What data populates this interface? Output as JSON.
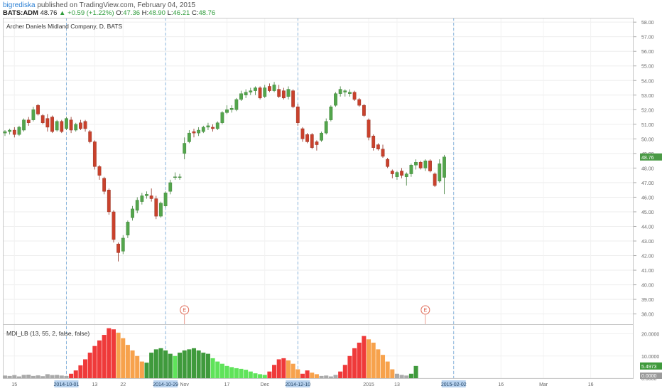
{
  "header": {
    "user": "bigrediska",
    "published": "published on TradingView.com, February 04, 2015",
    "symbol": "BATS:ADM",
    "last": "48.76",
    "change": "▲ +0.59 (+1.22%)",
    "o_label": "O:",
    "o": "47.36",
    "h_label": "H:",
    "h": "48.90",
    "l_label": "L:",
    "l": "46.21",
    "c_label": "C:",
    "c": "48.76"
  },
  "chart_data": [
    {
      "type": "candlestick",
      "title": "Archer Daniels Midland Company, D, BATS",
      "ylim": [
        37.3,
        58.3
      ],
      "yticks": [
        38,
        39,
        40,
        41,
        42,
        43,
        44,
        45,
        46,
        47,
        48,
        49,
        50,
        51,
        52,
        53,
        54,
        55,
        56,
        57,
        58
      ],
      "ytick_labels": [
        "38.00",
        "39.00",
        "40.00",
        "41.00",
        "42.00",
        "43.00",
        "44.00",
        "45.00",
        "46.00",
        "47.00",
        "48.00",
        "49.00",
        "50.00",
        "51.00",
        "52.00",
        "53.00",
        "54.00",
        "55.00",
        "56.00",
        "57.00",
        "58.00"
      ],
      "last_price_label": "48.76",
      "colors": {
        "up": "#53a54c",
        "down": "#c9412c",
        "last_price": "#4a9a45"
      },
      "earnings_markers": [
        {
          "index": 38,
          "label": "E"
        },
        {
          "index": 89,
          "label": "E"
        }
      ],
      "candles": [
        {
          "o": 50.4,
          "h": 50.6,
          "l": 50.2,
          "c": 50.5
        },
        {
          "o": 50.5,
          "h": 50.7,
          "l": 50.3,
          "c": 50.6
        },
        {
          "o": 50.6,
          "h": 50.8,
          "l": 50.1,
          "c": 50.3
        },
        {
          "o": 50.3,
          "h": 50.9,
          "l": 50.2,
          "c": 50.8
        },
        {
          "o": 50.6,
          "h": 51.4,
          "l": 50.5,
          "c": 51.3
        },
        {
          "o": 51.3,
          "h": 51.5,
          "l": 50.9,
          "c": 51.1
        },
        {
          "o": 51.3,
          "h": 52.2,
          "l": 51.2,
          "c": 52.0
        },
        {
          "o": 52.3,
          "h": 52.4,
          "l": 51.6,
          "c": 51.7
        },
        {
          "o": 51.6,
          "h": 51.7,
          "l": 51.0,
          "c": 51.1
        },
        {
          "o": 51.4,
          "h": 51.7,
          "l": 50.5,
          "c": 50.8
        },
        {
          "o": 51.5,
          "h": 51.6,
          "l": 50.4,
          "c": 50.5
        },
        {
          "o": 50.6,
          "h": 51.3,
          "l": 50.5,
          "c": 51.2
        },
        {
          "o": 51.2,
          "h": 51.3,
          "l": 50.4,
          "c": 50.5
        },
        {
          "o": 50.7,
          "h": 51.5,
          "l": 50.6,
          "c": 51.4
        },
        {
          "o": 51.3,
          "h": 51.5,
          "l": 50.4,
          "c": 50.6
        },
        {
          "o": 50.6,
          "h": 51.1,
          "l": 50.5,
          "c": 51.0
        },
        {
          "o": 51.1,
          "h": 51.3,
          "l": 50.6,
          "c": 50.7
        },
        {
          "o": 51.2,
          "h": 51.3,
          "l": 50.5,
          "c": 50.7
        },
        {
          "o": 50.5,
          "h": 50.6,
          "l": 49.7,
          "c": 49.8
        },
        {
          "o": 49.8,
          "h": 49.9,
          "l": 47.9,
          "c": 48.1
        },
        {
          "o": 48.1,
          "h": 48.2,
          "l": 47.2,
          "c": 47.5
        },
        {
          "o": 47.3,
          "h": 47.4,
          "l": 46.2,
          "c": 46.4
        },
        {
          "o": 46.5,
          "h": 46.6,
          "l": 44.8,
          "c": 45.0
        },
        {
          "o": 45.0,
          "h": 45.1,
          "l": 42.9,
          "c": 43.1
        },
        {
          "o": 42.8,
          "h": 42.9,
          "l": 41.6,
          "c": 42.2
        },
        {
          "o": 42.3,
          "h": 43.4,
          "l": 42.1,
          "c": 43.2
        },
        {
          "o": 43.4,
          "h": 44.4,
          "l": 43.2,
          "c": 44.3
        },
        {
          "o": 44.6,
          "h": 45.4,
          "l": 44.4,
          "c": 45.2
        },
        {
          "o": 45.1,
          "h": 46.0,
          "l": 44.9,
          "c": 45.8
        },
        {
          "o": 45.7,
          "h": 46.3,
          "l": 45.5,
          "c": 46.1
        },
        {
          "o": 46.1,
          "h": 46.4,
          "l": 45.9,
          "c": 46.2
        },
        {
          "o": 46.1,
          "h": 46.6,
          "l": 45.7,
          "c": 45.9
        },
        {
          "o": 45.9,
          "h": 46.1,
          "l": 44.5,
          "c": 44.7
        },
        {
          "o": 44.7,
          "h": 45.7,
          "l": 44.6,
          "c": 45.6
        },
        {
          "o": 45.4,
          "h": 46.4,
          "l": 45.3,
          "c": 46.3
        },
        {
          "o": 46.4,
          "h": 47.2,
          "l": 46.2,
          "c": 47.0
        },
        {
          "o": 47.4,
          "h": 47.7,
          "l": 47.2,
          "c": 47.4
        },
        {
          "o": 47.4,
          "h": 47.6,
          "l": 47.2,
          "c": 47.4
        },
        {
          "o": 49.0,
          "h": 50.1,
          "l": 48.6,
          "c": 49.7
        },
        {
          "o": 49.8,
          "h": 50.6,
          "l": 49.7,
          "c": 50.4
        },
        {
          "o": 50.5,
          "h": 50.7,
          "l": 50.1,
          "c": 50.4
        },
        {
          "o": 50.4,
          "h": 50.8,
          "l": 50.2,
          "c": 50.6
        },
        {
          "o": 50.5,
          "h": 50.9,
          "l": 50.4,
          "c": 50.8
        },
        {
          "o": 50.8,
          "h": 51.1,
          "l": 50.6,
          "c": 50.9
        },
        {
          "o": 50.8,
          "h": 51.0,
          "l": 50.5,
          "c": 50.7
        },
        {
          "o": 50.7,
          "h": 51.2,
          "l": 50.6,
          "c": 51.1
        },
        {
          "o": 51.1,
          "h": 51.9,
          "l": 51.0,
          "c": 51.8
        },
        {
          "o": 51.8,
          "h": 52.3,
          "l": 51.7,
          "c": 52.0
        },
        {
          "o": 52.0,
          "h": 52.3,
          "l": 51.8,
          "c": 52.1
        },
        {
          "o": 52.0,
          "h": 52.8,
          "l": 51.9,
          "c": 52.7
        },
        {
          "o": 52.7,
          "h": 53.3,
          "l": 52.6,
          "c": 53.1
        },
        {
          "o": 53.0,
          "h": 53.4,
          "l": 52.8,
          "c": 53.2
        },
        {
          "o": 53.2,
          "h": 53.5,
          "l": 53.0,
          "c": 53.3
        },
        {
          "o": 53.3,
          "h": 53.6,
          "l": 53.0,
          "c": 53.5
        },
        {
          "o": 53.5,
          "h": 53.6,
          "l": 52.7,
          "c": 52.8
        },
        {
          "o": 52.9,
          "h": 53.7,
          "l": 52.8,
          "c": 53.5
        },
        {
          "o": 53.6,
          "h": 53.8,
          "l": 53.2,
          "c": 53.3
        },
        {
          "o": 53.3,
          "h": 53.9,
          "l": 53.2,
          "c": 53.7
        },
        {
          "o": 53.4,
          "h": 53.7,
          "l": 52.8,
          "c": 52.9
        },
        {
          "o": 53.3,
          "h": 53.5,
          "l": 52.7,
          "c": 52.8
        },
        {
          "o": 52.9,
          "h": 53.6,
          "l": 52.7,
          "c": 53.4
        },
        {
          "o": 53.3,
          "h": 53.4,
          "l": 52.1,
          "c": 52.2
        },
        {
          "o": 52.2,
          "h": 52.4,
          "l": 50.9,
          "c": 51.1
        },
        {
          "o": 50.7,
          "h": 50.8,
          "l": 49.8,
          "c": 50.0
        },
        {
          "o": 50.3,
          "h": 50.4,
          "l": 49.7,
          "c": 49.8
        },
        {
          "o": 50.3,
          "h": 50.4,
          "l": 49.3,
          "c": 49.4
        },
        {
          "o": 49.8,
          "h": 49.9,
          "l": 49.2,
          "c": 49.6
        },
        {
          "o": 49.9,
          "h": 50.5,
          "l": 49.8,
          "c": 50.4
        },
        {
          "o": 50.4,
          "h": 51.4,
          "l": 50.3,
          "c": 51.2
        },
        {
          "o": 51.3,
          "h": 52.3,
          "l": 51.2,
          "c": 52.2
        },
        {
          "o": 52.3,
          "h": 53.2,
          "l": 52.2,
          "c": 53.1
        },
        {
          "o": 53.1,
          "h": 53.6,
          "l": 52.9,
          "c": 53.4
        },
        {
          "o": 53.2,
          "h": 53.4,
          "l": 52.9,
          "c": 53.3
        },
        {
          "o": 53.1,
          "h": 53.4,
          "l": 52.9,
          "c": 53.2
        },
        {
          "o": 53.2,
          "h": 53.3,
          "l": 52.6,
          "c": 52.7
        },
        {
          "o": 52.7,
          "h": 52.8,
          "l": 52.2,
          "c": 52.3
        },
        {
          "o": 52.3,
          "h": 52.4,
          "l": 51.5,
          "c": 51.6
        },
        {
          "o": 51.3,
          "h": 51.4,
          "l": 49.9,
          "c": 50.1
        },
        {
          "o": 50.2,
          "h": 50.3,
          "l": 49.2,
          "c": 49.4
        },
        {
          "o": 49.6,
          "h": 49.7,
          "l": 49.2,
          "c": 49.3
        },
        {
          "o": 49.3,
          "h": 49.6,
          "l": 48.7,
          "c": 48.8
        },
        {
          "o": 48.6,
          "h": 48.7,
          "l": 48.0,
          "c": 48.1
        },
        {
          "o": 47.8,
          "h": 47.9,
          "l": 47.3,
          "c": 47.6
        },
        {
          "o": 47.4,
          "h": 47.8,
          "l": 47.2,
          "c": 47.7
        },
        {
          "o": 47.8,
          "h": 48.0,
          "l": 47.3,
          "c": 47.5
        },
        {
          "o": 47.4,
          "h": 47.7,
          "l": 46.8,
          "c": 47.6
        },
        {
          "o": 47.6,
          "h": 48.3,
          "l": 47.4,
          "c": 48.2
        },
        {
          "o": 48.2,
          "h": 48.6,
          "l": 47.9,
          "c": 48.4
        },
        {
          "o": 48.4,
          "h": 48.5,
          "l": 47.9,
          "c": 48.0
        },
        {
          "o": 48.0,
          "h": 48.6,
          "l": 47.8,
          "c": 48.5
        },
        {
          "o": 48.5,
          "h": 48.6,
          "l": 47.7,
          "c": 47.8
        },
        {
          "o": 47.6,
          "h": 47.7,
          "l": 46.7,
          "c": 46.8
        },
        {
          "o": 47.1,
          "h": 48.6,
          "l": 47.0,
          "c": 48.3
        },
        {
          "o": 47.36,
          "h": 48.9,
          "l": 46.21,
          "c": 48.76
        }
      ],
      "x_tick_labels": [
        {
          "index": 2,
          "label": "15"
        },
        {
          "index": 13,
          "label": "2014-10-01",
          "highlight": true
        },
        {
          "index": 19,
          "label": "13"
        },
        {
          "index": 25,
          "label": "22"
        },
        {
          "index": 34,
          "label": "2014-10-29",
          "highlight": true
        },
        {
          "index": 38,
          "label": "Nov"
        },
        {
          "index": 47,
          "label": "17"
        },
        {
          "index": 55,
          "label": "Dec"
        },
        {
          "index": 62,
          "label": "2014-12-10",
          "highlight": true
        },
        {
          "index": 77,
          "label": "2015"
        },
        {
          "index": 83,
          "label": "13"
        },
        {
          "index": 95,
          "label": "2015-02-02",
          "highlight": true
        },
        {
          "index": 105,
          "label": "16"
        },
        {
          "index": 114,
          "label": "Mar"
        },
        {
          "index": 124,
          "label": "16"
        }
      ],
      "vertical_markers": [
        13,
        34,
        62,
        95
      ]
    },
    {
      "type": "bar",
      "title": "MDI_LB (13, 55, 2, false, false)",
      "ylim": [
        0,
        24
      ],
      "yticks": [
        0,
        10,
        20
      ],
      "ytick_labels": [
        "0.0000",
        "10.0000",
        "20.0000"
      ],
      "current_labels": [
        "5.4973",
        "0.0000"
      ],
      "colors": {
        "gray": "#a9a9a9",
        "red": "#ef3a3a",
        "orange": "#f7a24c",
        "dark_green": "#3f9a3c",
        "light_green": "#5fe35a"
      },
      "bars": [
        {
          "v": 1.2,
          "c": "gray"
        },
        {
          "v": 1.0,
          "c": "gray"
        },
        {
          "v": 1.4,
          "c": "gray"
        },
        {
          "v": 0.8,
          "c": "gray"
        },
        {
          "v": 1.5,
          "c": "gray"
        },
        {
          "v": 1.6,
          "c": "gray"
        },
        {
          "v": 1.0,
          "c": "gray"
        },
        {
          "v": 1.3,
          "c": "gray"
        },
        {
          "v": 0.9,
          "c": "gray"
        },
        {
          "v": 1.8,
          "c": "gray"
        },
        {
          "v": 1.4,
          "c": "gray"
        },
        {
          "v": 1.5,
          "c": "gray"
        },
        {
          "v": 1.2,
          "c": "gray"
        },
        {
          "v": 1.0,
          "c": "gray"
        },
        {
          "v": 2.0,
          "c": "red"
        },
        {
          "v": 3.5,
          "c": "red"
        },
        {
          "v": 5.8,
          "c": "red"
        },
        {
          "v": 8.5,
          "c": "red"
        },
        {
          "v": 11.5,
          "c": "red"
        },
        {
          "v": 14.5,
          "c": "red"
        },
        {
          "v": 17.0,
          "c": "red"
        },
        {
          "v": 19.5,
          "c": "red"
        },
        {
          "v": 22.5,
          "c": "red"
        },
        {
          "v": 22.0,
          "c": "red"
        },
        {
          "v": 20.5,
          "c": "orange"
        },
        {
          "v": 18.0,
          "c": "orange"
        },
        {
          "v": 15.0,
          "c": "orange"
        },
        {
          "v": 12.5,
          "c": "orange"
        },
        {
          "v": 10.0,
          "c": "orange"
        },
        {
          "v": 7.5,
          "c": "orange"
        },
        {
          "v": 7.0,
          "c": "dark_green"
        },
        {
          "v": 11.5,
          "c": "dark_green"
        },
        {
          "v": 13.0,
          "c": "dark_green"
        },
        {
          "v": 13.5,
          "c": "dark_green"
        },
        {
          "v": 12.5,
          "c": "dark_green"
        },
        {
          "v": 11.0,
          "c": "dark_green"
        },
        {
          "v": 10.0,
          "c": "light_green"
        },
        {
          "v": 11.5,
          "c": "dark_green"
        },
        {
          "v": 12.5,
          "c": "dark_green"
        },
        {
          "v": 13.0,
          "c": "dark_green"
        },
        {
          "v": 13.5,
          "c": "dark_green"
        },
        {
          "v": 12.5,
          "c": "dark_green"
        },
        {
          "v": 11.5,
          "c": "dark_green"
        },
        {
          "v": 11.0,
          "c": "dark_green"
        },
        {
          "v": 9.0,
          "c": "light_green"
        },
        {
          "v": 7.5,
          "c": "light_green"
        },
        {
          "v": 6.5,
          "c": "light_green"
        },
        {
          "v": 5.5,
          "c": "light_green"
        },
        {
          "v": 5.0,
          "c": "light_green"
        },
        {
          "v": 4.5,
          "c": "light_green"
        },
        {
          "v": 4.2,
          "c": "light_green"
        },
        {
          "v": 3.8,
          "c": "light_green"
        },
        {
          "v": 3.0,
          "c": "light_green"
        },
        {
          "v": 2.2,
          "c": "light_green"
        },
        {
          "v": 1.8,
          "c": "light_green"
        },
        {
          "v": 1.5,
          "c": "light_green"
        },
        {
          "v": 3.0,
          "c": "red"
        },
        {
          "v": 6.0,
          "c": "red"
        },
        {
          "v": 8.5,
          "c": "red"
        },
        {
          "v": 9.0,
          "c": "red"
        },
        {
          "v": 8.0,
          "c": "orange"
        },
        {
          "v": 6.5,
          "c": "orange"
        },
        {
          "v": 4.0,
          "c": "orange"
        },
        {
          "v": 2.0,
          "c": "red"
        },
        {
          "v": 3.5,
          "c": "red"
        },
        {
          "v": 2.5,
          "c": "orange"
        },
        {
          "v": 1.8,
          "c": "orange"
        },
        {
          "v": 1.0,
          "c": "gray"
        },
        {
          "v": 1.2,
          "c": "gray"
        },
        {
          "v": 0.8,
          "c": "gray"
        },
        {
          "v": 1.5,
          "c": "gray"
        },
        {
          "v": 3.0,
          "c": "red"
        },
        {
          "v": 6.0,
          "c": "red"
        },
        {
          "v": 10.0,
          "c": "red"
        },
        {
          "v": 13.5,
          "c": "red"
        },
        {
          "v": 16.0,
          "c": "red"
        },
        {
          "v": 19.0,
          "c": "red"
        },
        {
          "v": 17.5,
          "c": "orange"
        },
        {
          "v": 16.0,
          "c": "orange"
        },
        {
          "v": 13.0,
          "c": "orange"
        },
        {
          "v": 10.5,
          "c": "orange"
        },
        {
          "v": 7.5,
          "c": "orange"
        },
        {
          "v": 4.0,
          "c": "orange"
        },
        {
          "v": 2.0,
          "c": "gray"
        },
        {
          "v": 1.5,
          "c": "gray"
        },
        {
          "v": 1.2,
          "c": "gray"
        },
        {
          "v": 2.0,
          "c": "dark_green"
        },
        {
          "v": 5.5,
          "c": "dark_green"
        }
      ]
    }
  ]
}
